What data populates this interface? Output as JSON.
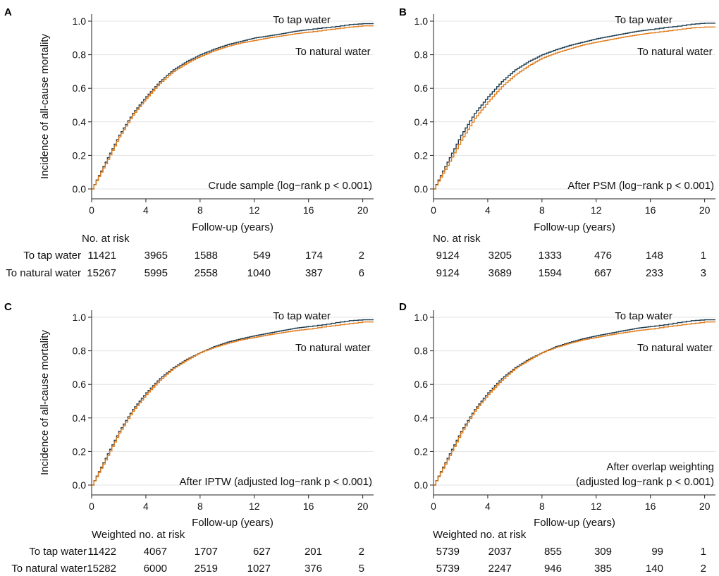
{
  "colors": {
    "tap": "#1d3b4f",
    "natural": "#e07b1a",
    "grid": "#e3e3e3",
    "axis": "#222222"
  },
  "chart_data": [
    {
      "panel": "A",
      "type": "line",
      "title": "",
      "xlabel": "Follow-up (years)",
      "ylabel": "Incidence of all-cause mortality",
      "xlim": [
        0,
        20.8
      ],
      "ylim": [
        0,
        1.0
      ],
      "xticks": [
        0,
        4,
        8,
        12,
        16,
        20
      ],
      "yticks": [
        0.0,
        0.2,
        0.4,
        0.6,
        0.8,
        1.0
      ],
      "ytick_labels": [
        "0.0",
        "0.2",
        "0.4",
        "0.6",
        "0.8",
        "1.0"
      ],
      "grid": true,
      "annotation": [
        "Crude sample (log−rank p < 0.001)"
      ],
      "series": [
        {
          "name": "To tap water",
          "color_key": "tap",
          "label_pos": "upper",
          "x": [
            0,
            1,
            2,
            3,
            4,
            5,
            6,
            7,
            8,
            9,
            10,
            11,
            12,
            13,
            14,
            15,
            16,
            17,
            18,
            19,
            20,
            20.8
          ],
          "y": [
            0,
            0.16,
            0.32,
            0.45,
            0.55,
            0.64,
            0.71,
            0.76,
            0.8,
            0.833,
            0.86,
            0.88,
            0.9,
            0.912,
            0.925,
            0.94,
            0.95,
            0.96,
            0.968,
            0.98,
            0.985,
            0.985
          ]
        },
        {
          "name": "To natural water",
          "color_key": "natural",
          "label_pos": "lower",
          "x": [
            0,
            1,
            2,
            3,
            4,
            5,
            6,
            7,
            8,
            9,
            10,
            11,
            12,
            13,
            14,
            15,
            16,
            17,
            18,
            19,
            20,
            20.8
          ],
          "y": [
            0,
            0.15,
            0.31,
            0.44,
            0.54,
            0.63,
            0.7,
            0.75,
            0.79,
            0.823,
            0.85,
            0.87,
            0.885,
            0.9,
            0.912,
            0.925,
            0.935,
            0.945,
            0.955,
            0.965,
            0.972,
            0.972
          ]
        }
      ],
      "risk_table": {
        "header": "No. at risk",
        "times": [
          0,
          4,
          8,
          12,
          16,
          20
        ],
        "rows": [
          {
            "label": "To tap water",
            "values": [
              "11421",
              "3965",
              "1588",
              "549",
              "174",
              "2"
            ]
          },
          {
            "label": "To natural water",
            "values": [
              "15267",
              "5995",
              "2558",
              "1040",
              "387",
              "6"
            ]
          }
        ]
      }
    },
    {
      "panel": "B",
      "type": "line",
      "title": "",
      "xlabel": "Follow-up (years)",
      "ylabel": "",
      "xlim": [
        0,
        20.8
      ],
      "ylim": [
        0,
        1.0
      ],
      "xticks": [
        0,
        4,
        8,
        12,
        16,
        20
      ],
      "yticks": [
        0.0,
        0.2,
        0.4,
        0.6,
        0.8,
        1.0
      ],
      "ytick_labels": [
        "0.0",
        "0.2",
        "0.4",
        "0.6",
        "0.8",
        "1.0"
      ],
      "grid": true,
      "annotation": [
        "After PSM (log−rank p < 0.001)"
      ],
      "series": [
        {
          "name": "To tap water",
          "color_key": "tap",
          "label_pos": "upper",
          "x": [
            0,
            1,
            2,
            3,
            4,
            5,
            6,
            7,
            8,
            9,
            10,
            11,
            12,
            13,
            14,
            15,
            16,
            17,
            18,
            19,
            20,
            20.8
          ],
          "y": [
            0,
            0.16,
            0.32,
            0.45,
            0.55,
            0.64,
            0.71,
            0.76,
            0.8,
            0.83,
            0.855,
            0.875,
            0.895,
            0.91,
            0.925,
            0.94,
            0.95,
            0.962,
            0.97,
            0.982,
            0.988,
            0.988
          ]
        },
        {
          "name": "To natural water",
          "color_key": "natural",
          "label_pos": "lower",
          "x": [
            0,
            1,
            2,
            3,
            4,
            5,
            6,
            7,
            8,
            9,
            10,
            11,
            12,
            13,
            14,
            15,
            16,
            17,
            18,
            19,
            20,
            20.8
          ],
          "y": [
            0,
            0.14,
            0.29,
            0.42,
            0.52,
            0.61,
            0.68,
            0.735,
            0.78,
            0.81,
            0.835,
            0.858,
            0.875,
            0.89,
            0.905,
            0.918,
            0.93,
            0.94,
            0.95,
            0.96,
            0.965,
            0.965
          ]
        }
      ],
      "risk_table": {
        "header": "No. at risk",
        "times": [
          0,
          4,
          8,
          12,
          16,
          20
        ],
        "rows": [
          {
            "label": "",
            "values": [
              "9124",
              "3205",
              "1333",
              "476",
              "148",
              "1"
            ]
          },
          {
            "label": "",
            "values": [
              "9124",
              "3689",
              "1594",
              "667",
              "233",
              "3"
            ]
          }
        ]
      }
    },
    {
      "panel": "C",
      "type": "line",
      "title": "",
      "xlabel": "Follow-up (years)",
      "ylabel": "Incidence of all-cause mortality",
      "xlim": [
        0,
        20.8
      ],
      "ylim": [
        0,
        1.0
      ],
      "xticks": [
        0,
        4,
        8,
        12,
        16,
        20
      ],
      "yticks": [
        0.0,
        0.2,
        0.4,
        0.6,
        0.8,
        1.0
      ],
      "ytick_labels": [
        "0.0",
        "0.2",
        "0.4",
        "0.6",
        "0.8",
        "1.0"
      ],
      "grid": true,
      "annotation": [
        "After IPTW (adjusted log−rank p < 0.001)"
      ],
      "series": [
        {
          "name": "To tap water",
          "color_key": "tap",
          "label_pos": "upper",
          "x": [
            0,
            1,
            2,
            3,
            4,
            5,
            6,
            7,
            8,
            9,
            10,
            11,
            12,
            13,
            14,
            15,
            16,
            17,
            18,
            19,
            20,
            20.8
          ],
          "y": [
            0,
            0.16,
            0.32,
            0.45,
            0.55,
            0.635,
            0.7,
            0.75,
            0.79,
            0.825,
            0.852,
            0.872,
            0.89,
            0.905,
            0.92,
            0.935,
            0.945,
            0.955,
            0.968,
            0.98,
            0.985,
            0.985
          ]
        },
        {
          "name": "To natural water",
          "color_key": "natural",
          "label_pos": "lower",
          "x": [
            0,
            1,
            2,
            3,
            4,
            5,
            6,
            7,
            8,
            9,
            10,
            11,
            12,
            13,
            14,
            15,
            16,
            17,
            18,
            19,
            20,
            20.8
          ],
          "y": [
            0,
            0.15,
            0.31,
            0.44,
            0.54,
            0.625,
            0.695,
            0.745,
            0.79,
            0.82,
            0.845,
            0.865,
            0.88,
            0.895,
            0.908,
            0.92,
            0.93,
            0.942,
            0.952,
            0.962,
            0.972,
            0.972
          ]
        }
      ],
      "risk_table": {
        "header": "Weighted no. at risk",
        "times": [
          0,
          4,
          8,
          12,
          16,
          20
        ],
        "rows": [
          {
            "label": "To tap water",
            "values": [
              "11422",
              "4067",
              "1707",
              "627",
              "201",
              "2"
            ]
          },
          {
            "label": "To natural water",
            "values": [
              "15282",
              "6000",
              "2519",
              "1027",
              "376",
              "5"
            ]
          }
        ]
      }
    },
    {
      "panel": "D",
      "type": "line",
      "title": "",
      "xlabel": "Follow-up (years)",
      "ylabel": "",
      "xlim": [
        0,
        20.8
      ],
      "ylim": [
        0,
        1.0
      ],
      "xticks": [
        0,
        4,
        8,
        12,
        16,
        20
      ],
      "yticks": [
        0.0,
        0.2,
        0.4,
        0.6,
        0.8,
        1.0
      ],
      "ytick_labels": [
        "0.0",
        "0.2",
        "0.4",
        "0.6",
        "0.8",
        "1.0"
      ],
      "grid": true,
      "annotation": [
        "After overlap weighting",
        "(adjusted log−rank p < 0.001)"
      ],
      "series": [
        {
          "name": "To tap water",
          "color_key": "tap",
          "label_pos": "upper",
          "x": [
            0,
            1,
            2,
            3,
            4,
            5,
            6,
            7,
            8,
            9,
            10,
            11,
            12,
            13,
            14,
            15,
            16,
            17,
            18,
            19,
            20,
            20.8
          ],
          "y": [
            0,
            0.16,
            0.32,
            0.45,
            0.55,
            0.635,
            0.7,
            0.75,
            0.79,
            0.825,
            0.85,
            0.872,
            0.89,
            0.905,
            0.92,
            0.935,
            0.945,
            0.955,
            0.968,
            0.98,
            0.985,
            0.985
          ]
        },
        {
          "name": "To natural water",
          "color_key": "natural",
          "label_pos": "lower",
          "x": [
            0,
            1,
            2,
            3,
            4,
            5,
            6,
            7,
            8,
            9,
            10,
            11,
            12,
            13,
            14,
            15,
            16,
            17,
            18,
            19,
            20,
            20.8
          ],
          "y": [
            0,
            0.15,
            0.31,
            0.44,
            0.54,
            0.625,
            0.695,
            0.745,
            0.79,
            0.82,
            0.845,
            0.865,
            0.88,
            0.895,
            0.908,
            0.92,
            0.93,
            0.942,
            0.952,
            0.962,
            0.972,
            0.972
          ]
        }
      ],
      "risk_table": {
        "header": "Weighted no. at risk",
        "times": [
          0,
          4,
          8,
          12,
          16,
          20
        ],
        "rows": [
          {
            "label": "",
            "values": [
              "5739",
              "2037",
              "855",
              "309",
              "99",
              "1"
            ]
          },
          {
            "label": "",
            "values": [
              "5739",
              "2247",
              "946",
              "385",
              "140",
              "2"
            ]
          }
        ]
      }
    }
  ]
}
